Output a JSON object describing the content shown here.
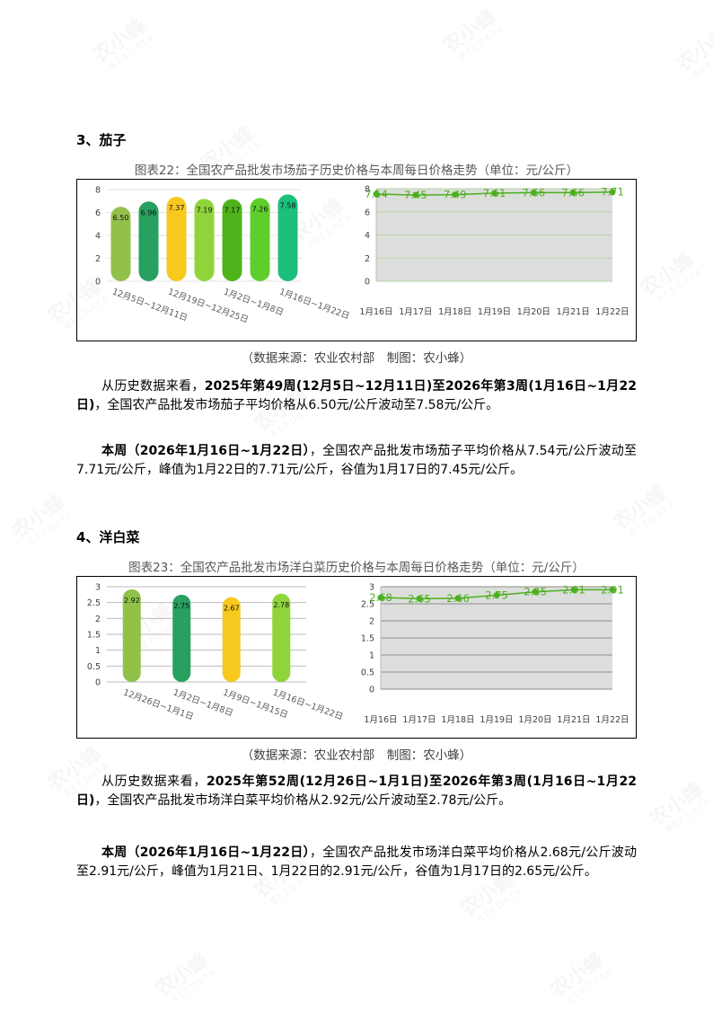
{
  "watermark": [
    "农小蜂",
    "BEEDATA"
  ],
  "sections": [
    {
      "heading": "3、茄子",
      "caption": "图表22：全国农产品批发市场茄子历史价格与本周每日价格走势（单位：元/公斤）",
      "source": "（数据来源：农业农村部　制图：农小蜂）",
      "paragraphs": [
        [
          {
            "text": "从历史数据来看，",
            "bold": false
          },
          {
            "text": "2025年第49周(12月5日~12月11日)至2026年第3周(1月16日~1月22日)",
            "bold": true
          },
          {
            "text": "，全国农产品批发市场茄子平均价格从6.50元/公斤波动至7.58元/公斤。",
            "bold": false
          }
        ],
        [
          {
            "text": "本周（2026年1月16日~1月22日）",
            "bold": true
          },
          {
            "text": "，全国农产品批发市场茄子平均价格从7.54元/公斤波动至7.71元/公斤，峰值为1月22日的7.71元/公斤，谷值为1月17日的7.45元/公斤。",
            "bold": false
          }
        ]
      ]
    },
    {
      "heading": "4、洋白菜",
      "caption": "图表23：全国农产品批发市场洋白菜历史价格与本周每日价格走势（单位：元/公斤）",
      "source": "（数据来源：农业农村部　制图：农小蜂）",
      "paragraphs": [
        [
          {
            "text": "从历史数据来看，",
            "bold": false
          },
          {
            "text": "2025年第52周(12月26日~1月1日)至2026年第3周(1月16日~1月22日)",
            "bold": true
          },
          {
            "text": "，全国农产品批发市场洋白菜平均价格从2.92元/公斤波动至2.78元/公斤。",
            "bold": false
          }
        ],
        [
          {
            "text": "本周（2026年1月16日~1月22日）",
            "bold": true
          },
          {
            "text": "，全国农产品批发市场洋白菜平均价格从2.68元/公斤波动至2.91元/公斤，峰值为1月21日、1月22日的2.91元/公斤，谷值为1月17日的2.65元/公斤。",
            "bold": false
          }
        ]
      ]
    }
  ],
  "chart_data": [
    {
      "type": "bar",
      "categories": [
        "12月5日~12月11日",
        null,
        "12月19日~12月25日",
        null,
        "1月2日~1月8日",
        null,
        "1月16日~1月22日"
      ],
      "values": [
        6.5,
        6.96,
        7.37,
        7.19,
        7.17,
        7.26,
        7.58
      ],
      "value_labels": [
        "6.50",
        "6.96",
        "7.37",
        "7.19",
        "7.17",
        "7.26",
        "7.58"
      ],
      "colors": [
        "#92c14a",
        "#27a060",
        "#f7c81e",
        "#8fd43a",
        "#4fb31c",
        "#5fce2c",
        "#1dbf7c"
      ],
      "ylim": [
        0,
        8
      ],
      "yticks": [
        0,
        2,
        4,
        6,
        8
      ],
      "grid": true,
      "grid_color": "#e3e3e3"
    },
    {
      "type": "line",
      "categories": [
        "1月16日",
        "1月17日",
        "1月18日",
        "1月19日",
        "1月20日",
        "1月21日",
        "1月22日"
      ],
      "values": [
        7.54,
        7.45,
        7.49,
        7.61,
        7.66,
        7.66,
        7.71
      ],
      "color": "#4caf1e",
      "plot_background": "#dcdedb",
      "ylim": [
        0,
        8
      ],
      "yticks": [
        0,
        2,
        4,
        6,
        8
      ],
      "grid": true,
      "grid_color": "#b9d3a7"
    },
    {
      "type": "bar",
      "categories": [
        "12月26日~1月1日",
        "1月2日~1月8日",
        "1月9日~1月15日",
        "1月16日~1月22日"
      ],
      "values": [
        2.92,
        2.75,
        2.67,
        2.78
      ],
      "colors": [
        "#92c14a",
        "#27a060",
        "#f7c81e",
        "#8fd43a"
      ],
      "ylim": [
        0,
        3
      ],
      "yticks": [
        0,
        0.5,
        1,
        1.5,
        2,
        2.5,
        3
      ],
      "grid": true,
      "grid_color": "#bdbdbd"
    },
    {
      "type": "line",
      "categories": [
        "1月16日",
        "1月17日",
        "1月18日",
        "1月19日",
        "1月20日",
        "1月21日",
        "1月22日"
      ],
      "values": [
        2.68,
        2.65,
        2.66,
        2.75,
        2.85,
        2.91,
        2.91
      ],
      "color": "#4caf1e",
      "plot_background": "#dcdedb",
      "ylim": [
        0,
        3
      ],
      "yticks": [
        0,
        0.5,
        1,
        1.5,
        2,
        2.5,
        3
      ],
      "grid": true,
      "grid_color": "#8f8f8f"
    }
  ]
}
